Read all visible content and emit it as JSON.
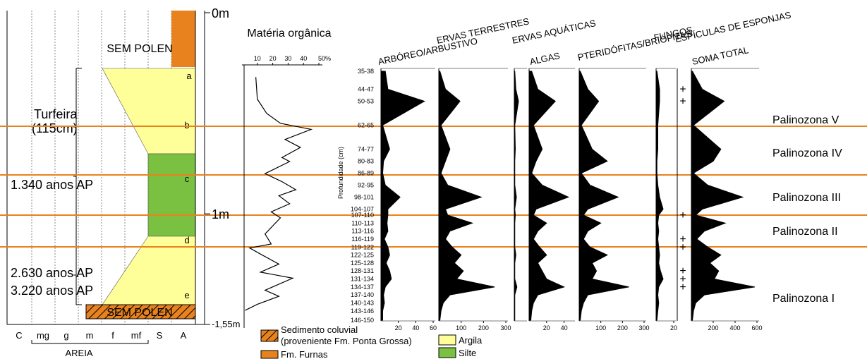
{
  "chart_data": [
    {
      "type": "line",
      "title": "Matéria orgânica",
      "depth": [
        32,
        43,
        50,
        55,
        58,
        63,
        67,
        72,
        74,
        80,
        84,
        88,
        91,
        95,
        99,
        102,
        110,
        115,
        117,
        120,
        125,
        129,
        132,
        138,
        141,
        145,
        148
      ],
      "values": [
        9,
        10,
        16,
        25,
        45,
        28,
        38,
        26,
        31,
        15,
        26,
        35,
        24,
        31,
        19,
        25,
        15,
        19,
        5,
        12,
        24,
        12,
        33,
        15,
        24,
        10,
        2
      ],
      "xlim": [
        0,
        50
      ],
      "xticks": [
        10,
        20,
        30,
        40,
        {
          "value": 50,
          "label": "50%"
        }
      ],
      "ylim": [
        0,
        155
      ],
      "yticks": [
        {
          "value": 0,
          "label": "0m"
        },
        {
          "value": 100,
          "label": "1m"
        },
        {
          "value": 155,
          "label": "-1,55m"
        }
      ],
      "color": "#000000"
    },
    {
      "type": "pollen",
      "y_label": "Profundidade (cm)",
      "color": "#000000",
      "categories": [
        "35-38",
        "44-47",
        "50-53",
        "62-65",
        "74-77",
        "80-83",
        "86-89",
        "92-95",
        "98-101",
        "104-107",
        "107-110",
        "110-113",
        "113-116",
        "116-119",
        "119-122",
        "122-125",
        "125-128",
        "128-131",
        "131-134",
        "134-137",
        "137-140",
        "140-143",
        "143-146",
        "146-150"
      ],
      "panels": [
        {
          "title": "ARBÓREO/ARBUSTIVO",
          "xlim": [
            0,
            60
          ],
          "xticks": [
            20,
            40,
            60
          ],
          "values": [
            5,
            8,
            50,
            2,
            10,
            3,
            2,
            5,
            22,
            8,
            8,
            7,
            8,
            4,
            8,
            10,
            6,
            10,
            12,
            5,
            3,
            4,
            2,
            2
          ]
        },
        {
          "title": "ERVAS TERRESTRES",
          "xlim": [
            0,
            300
          ],
          "xticks": [
            100,
            200,
            300
          ],
          "values": [
            5,
            30,
            95,
            10,
            50,
            30,
            10,
            40,
            190,
            30,
            40,
            150,
            50,
            30,
            60,
            100,
            70,
            110,
            80,
            250,
            50,
            20,
            10,
            5
          ]
        },
        {
          "title": "ERVAS AQUÁTICAS",
          "xlim": [
            0,
            20
          ],
          "values": [
            1,
            3,
            8,
            1,
            2,
            1,
            1,
            1,
            4,
            1,
            2,
            1,
            1,
            1,
            1,
            3,
            1,
            1,
            1,
            5,
            1,
            1,
            1,
            1
          ]
        },
        {
          "title": "ALGAS",
          "xlim": [
            0,
            50
          ],
          "xticks": [
            20,
            40
          ],
          "values": [
            3,
            10,
            30,
            5,
            15,
            8,
            3,
            15,
            45,
            8,
            5,
            20,
            10,
            5,
            12,
            20,
            10,
            15,
            20,
            40,
            10,
            5,
            3,
            2
          ]
        },
        {
          "title": "PTERIDÓFITAS/BRIÓFITAS",
          "xlim": [
            0,
            300
          ],
          "xticks": [
            100,
            200,
            300
          ],
          "values": [
            5,
            40,
            90,
            10,
            60,
            130,
            10,
            50,
            180,
            40,
            20,
            100,
            40,
            20,
            50,
            130,
            60,
            80,
            60,
            230,
            40,
            20,
            10,
            5
          ]
        },
        {
          "title": "FUNGOS",
          "xlim": [
            0,
            20
          ],
          "xticks": [
            20
          ],
          "values": [
            1,
            4,
            4,
            2,
            2,
            1,
            1,
            2,
            4,
            8,
            3,
            2,
            3,
            2,
            3,
            4,
            3,
            5,
            8,
            3,
            2,
            3,
            2,
            1
          ]
        },
        {
          "title": "SOMA TOTAL",
          "xlim": [
            0,
            600
          ],
          "xticks": [
            200,
            400,
            600
          ],
          "values": [
            10,
            100,
            300,
            20,
            270,
            200,
            20,
            150,
            470,
            100,
            40,
            310,
            120,
            50,
            150,
            270,
            170,
            250,
            210,
            580,
            120,
            40,
            20,
            10
          ]
        }
      ],
      "spicules": {
        "title": "ESPÍCULAS DE ESPONJAS",
        "marker": "+",
        "categories": [
          "44-47",
          "50-53",
          "107-110",
          "116-119",
          "119-122",
          "128-131",
          "131-134",
          "134-137"
        ]
      },
      "zones": [
        "Palinozona V",
        "Palinozona IV",
        "Palinozona III",
        "Palinozona II",
        "Palinozona I"
      ]
    }
  ],
  "column": {
    "no_pollen": "SEM POLEN",
    "letters": [
      "a",
      "b",
      "c",
      "d",
      "e"
    ],
    "peat": "Turfeira",
    "peat_thickness": "(115cm)",
    "dates": [
      "1.340 anos AP",
      "2.630 anos AP",
      "3.220 anos AP"
    ],
    "grain_sizes": [
      "C",
      "mg",
      "g",
      "m",
      "f",
      "mf",
      "S",
      "A"
    ],
    "sand": "AREIA"
  },
  "legend": {
    "colluvial": "Sedimento coluvial",
    "colluvial_source": "(proveniente Fm. Ponta Grossa)",
    "furnas": "Fm. Furnas",
    "clay": "Argila",
    "silt": "Silte"
  }
}
